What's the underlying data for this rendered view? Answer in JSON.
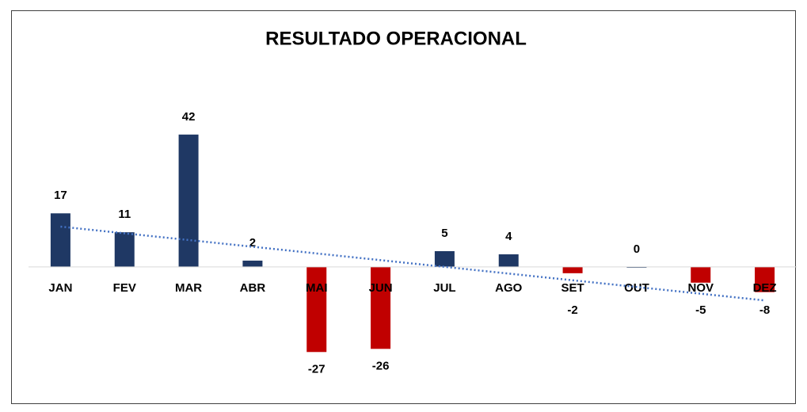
{
  "chart_data": {
    "type": "bar",
    "title": "RESULTADO OPERACIONAL",
    "categories": [
      "JAN",
      "FEV",
      "MAR",
      "ABR",
      "MAI",
      "JUN",
      "JUL",
      "AGO",
      "SET",
      "OUT",
      "NOV",
      "DEZ"
    ],
    "values": [
      17,
      11,
      42,
      2,
      -27,
      -26,
      5,
      4,
      -2,
      0,
      -5,
      -8
    ],
    "positive_color": "#1f3864",
    "negative_color": "#c00000",
    "ylim": [
      -40,
      50
    ],
    "trendline": {
      "type": "linear",
      "color": "#4472c4"
    }
  }
}
